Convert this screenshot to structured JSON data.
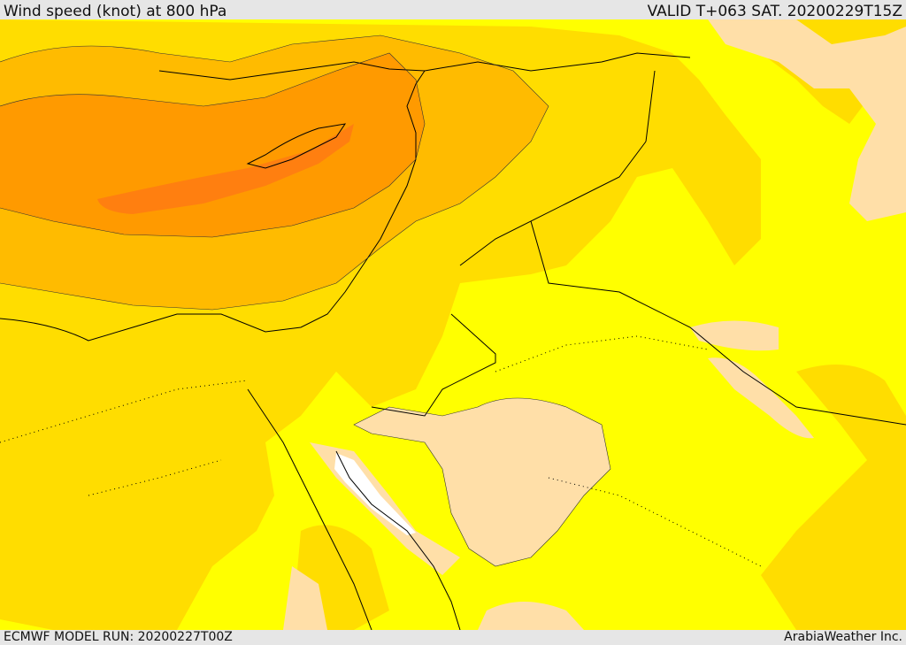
{
  "header": {
    "title": "Wind speed (knot) at 800 hPa",
    "valid_time": "VALID T+063 SAT. 20200229T15Z"
  },
  "footer": {
    "model_run": "ECMWF MODEL RUN: 20200227T00Z",
    "credit": "ArabiaWeather Inc."
  },
  "colors": {
    "low_wind": "#ffdfa8",
    "level_1": "#ffff00",
    "level_2": "#ffdd00",
    "level_3": "#ffbb00",
    "level_4": "#ff9a00",
    "level_5": "#ff7f10",
    "no_data": "#ffffff",
    "frame": "#e6e6e6"
  }
}
